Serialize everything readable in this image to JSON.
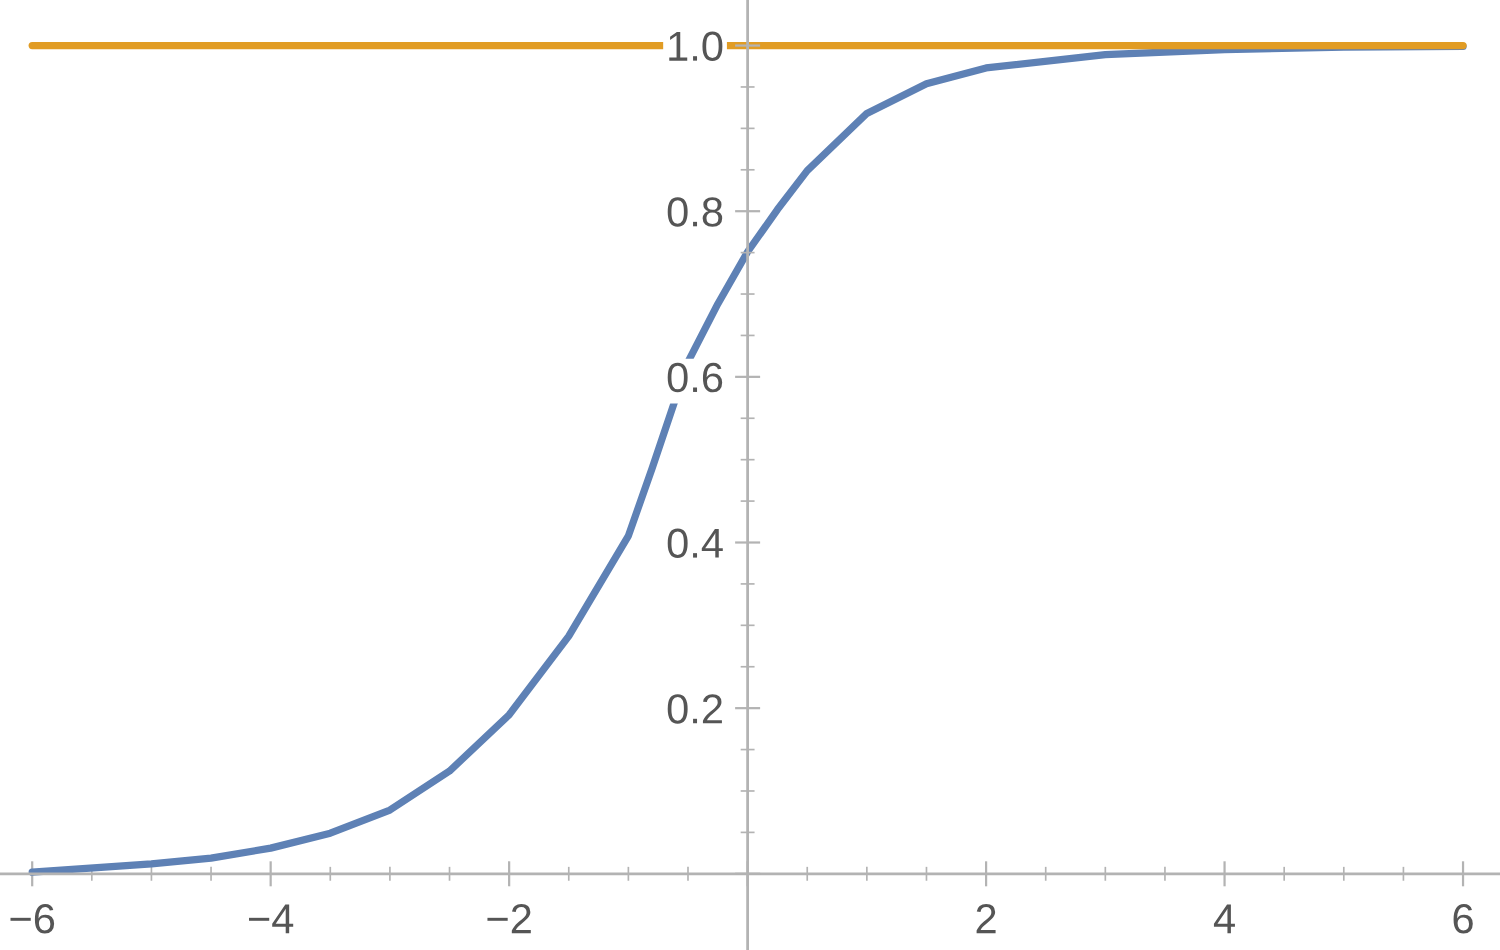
{
  "chart_data": {
    "type": "line",
    "x": [
      -6,
      -5,
      -4.5,
      -4,
      -3.5,
      -3,
      -2.5,
      -2,
      -1.5,
      -1,
      -0.8,
      -0.5,
      -0.25,
      0,
      0.25,
      0.5,
      1,
      1.5,
      2,
      3,
      4,
      5,
      6
    ],
    "series": [
      {
        "color": "#5e81b5",
        "values": [
          0.002,
          0.012,
          0.019,
          0.031,
          0.049,
          0.077,
          0.124,
          0.192,
          0.287,
          0.408,
          0.49,
          0.618,
          0.688,
          0.751,
          0.802,
          0.849,
          0.918,
          0.954,
          0.973,
          0.989,
          0.995,
          0.998,
          0.999
        ]
      },
      {
        "color": "#e19c24",
        "x": [
          -6,
          6
        ],
        "values": [
          1.0,
          1.0
        ]
      }
    ],
    "xlim": [
      -6.27,
      6.31
    ],
    "ylim": [
      -0.092,
      1.055
    ],
    "xticks": [
      {
        "value": -6,
        "label": "−6"
      },
      {
        "value": -4,
        "label": "−4"
      },
      {
        "value": -2,
        "label": "−2"
      },
      {
        "value": 0,
        "label": null
      },
      2,
      4,
      6
    ],
    "yticks": [
      {
        "value": 0,
        "label": null
      },
      0.2,
      0.4,
      0.6,
      0.8,
      {
        "value": 1.0,
        "label": "1.0"
      }
    ],
    "grid": false,
    "legend": false,
    "marker": "none",
    "line_style": "solid"
  }
}
